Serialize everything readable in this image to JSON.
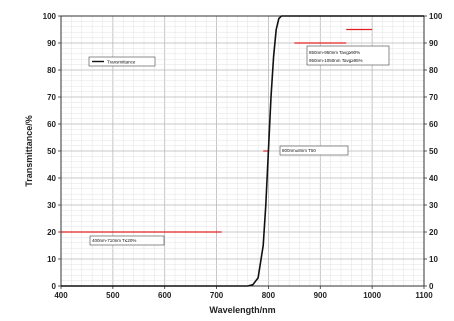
{
  "chart_data": {
    "type": "line",
    "xlabel": "Wavelength/nm",
    "ylabel": "Transmittance/%",
    "xlim": [
      400,
      1100
    ],
    "ylim": [
      0,
      100
    ],
    "x_ticks": [
      400,
      500,
      600,
      700,
      800,
      900,
      1000,
      1100
    ],
    "y_ticks": [
      0,
      10,
      20,
      30,
      40,
      50,
      60,
      70,
      80,
      90,
      100
    ],
    "grid": true,
    "legend_position": "top-left",
    "series": [
      {
        "name": "Transmittance",
        "color": "#111111",
        "x": [
          400,
          700,
          760,
          770,
          780,
          790,
          795,
          800,
          805,
          810,
          815,
          820,
          825,
          830,
          900,
          1000,
          1100
        ],
        "y": [
          0,
          0,
          0,
          0.5,
          3,
          15,
          30,
          50,
          70,
          85,
          95,
          99,
          100,
          100,
          100,
          100,
          100
        ]
      }
    ],
    "markers": [
      {
        "x_range": [
          400,
          710
        ],
        "y": 20,
        "label": "400nm-710nm T≤20%"
      },
      {
        "x_range": [
          790,
          800
        ],
        "y": 50,
        "label": "800nm±8nm T50"
      },
      {
        "x_range": [
          850,
          950
        ],
        "y": 90,
        "label": "850nm-950nm Tavg≥90%"
      },
      {
        "x_range": [
          950,
          1000
        ],
        "y": 95,
        "label": "950nm-1050nm Tavg≥95%"
      }
    ],
    "marker_color": "#e02020"
  }
}
